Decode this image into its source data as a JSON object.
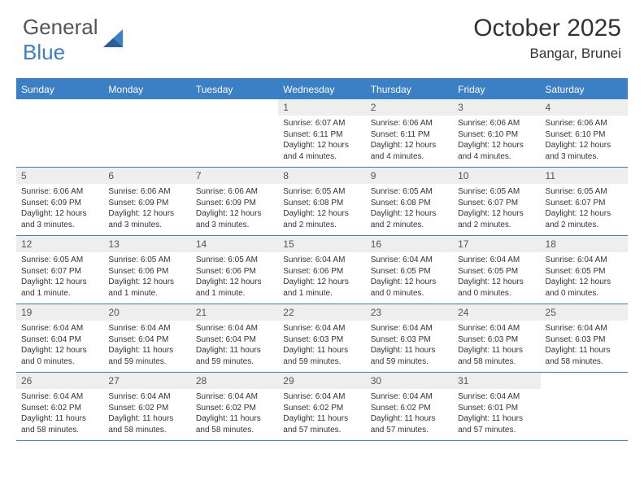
{
  "brand": {
    "text1": "General",
    "text2": "Blue"
  },
  "title": "October 2025",
  "subtitle": "Bangar, Brunei",
  "colors": {
    "brand_blue": "#3b7fc4",
    "header_bg": "#3b7fc4",
    "header_fg": "#ffffff",
    "daynum_bg": "#eeeeee",
    "body_fg": "#333333"
  },
  "fontsize": {
    "title": 30,
    "subtitle": 17,
    "dow": 12,
    "daynum": 12,
    "body": 10
  },
  "days_of_week": [
    "Sunday",
    "Monday",
    "Tuesday",
    "Wednesday",
    "Thursday",
    "Friday",
    "Saturday"
  ],
  "weeks": [
    [
      {
        "n": "",
        "sr": "",
        "ss": "",
        "dl": ""
      },
      {
        "n": "",
        "sr": "",
        "ss": "",
        "dl": ""
      },
      {
        "n": "",
        "sr": "",
        "ss": "",
        "dl": ""
      },
      {
        "n": "1",
        "sr": "6:07 AM",
        "ss": "6:11 PM",
        "dl": "12 hours and 4 minutes."
      },
      {
        "n": "2",
        "sr": "6:06 AM",
        "ss": "6:11 PM",
        "dl": "12 hours and 4 minutes."
      },
      {
        "n": "3",
        "sr": "6:06 AM",
        "ss": "6:10 PM",
        "dl": "12 hours and 4 minutes."
      },
      {
        "n": "4",
        "sr": "6:06 AM",
        "ss": "6:10 PM",
        "dl": "12 hours and 3 minutes."
      }
    ],
    [
      {
        "n": "5",
        "sr": "6:06 AM",
        "ss": "6:09 PM",
        "dl": "12 hours and 3 minutes."
      },
      {
        "n": "6",
        "sr": "6:06 AM",
        "ss": "6:09 PM",
        "dl": "12 hours and 3 minutes."
      },
      {
        "n": "7",
        "sr": "6:06 AM",
        "ss": "6:09 PM",
        "dl": "12 hours and 3 minutes."
      },
      {
        "n": "8",
        "sr": "6:05 AM",
        "ss": "6:08 PM",
        "dl": "12 hours and 2 minutes."
      },
      {
        "n": "9",
        "sr": "6:05 AM",
        "ss": "6:08 PM",
        "dl": "12 hours and 2 minutes."
      },
      {
        "n": "10",
        "sr": "6:05 AM",
        "ss": "6:07 PM",
        "dl": "12 hours and 2 minutes."
      },
      {
        "n": "11",
        "sr": "6:05 AM",
        "ss": "6:07 PM",
        "dl": "12 hours and 2 minutes."
      }
    ],
    [
      {
        "n": "12",
        "sr": "6:05 AM",
        "ss": "6:07 PM",
        "dl": "12 hours and 1 minute."
      },
      {
        "n": "13",
        "sr": "6:05 AM",
        "ss": "6:06 PM",
        "dl": "12 hours and 1 minute."
      },
      {
        "n": "14",
        "sr": "6:05 AM",
        "ss": "6:06 PM",
        "dl": "12 hours and 1 minute."
      },
      {
        "n": "15",
        "sr": "6:04 AM",
        "ss": "6:06 PM",
        "dl": "12 hours and 1 minute."
      },
      {
        "n": "16",
        "sr": "6:04 AM",
        "ss": "6:05 PM",
        "dl": "12 hours and 0 minutes."
      },
      {
        "n": "17",
        "sr": "6:04 AM",
        "ss": "6:05 PM",
        "dl": "12 hours and 0 minutes."
      },
      {
        "n": "18",
        "sr": "6:04 AM",
        "ss": "6:05 PM",
        "dl": "12 hours and 0 minutes."
      }
    ],
    [
      {
        "n": "19",
        "sr": "6:04 AM",
        "ss": "6:04 PM",
        "dl": "12 hours and 0 minutes."
      },
      {
        "n": "20",
        "sr": "6:04 AM",
        "ss": "6:04 PM",
        "dl": "11 hours and 59 minutes."
      },
      {
        "n": "21",
        "sr": "6:04 AM",
        "ss": "6:04 PM",
        "dl": "11 hours and 59 minutes."
      },
      {
        "n": "22",
        "sr": "6:04 AM",
        "ss": "6:03 PM",
        "dl": "11 hours and 59 minutes."
      },
      {
        "n": "23",
        "sr": "6:04 AM",
        "ss": "6:03 PM",
        "dl": "11 hours and 59 minutes."
      },
      {
        "n": "24",
        "sr": "6:04 AM",
        "ss": "6:03 PM",
        "dl": "11 hours and 58 minutes."
      },
      {
        "n": "25",
        "sr": "6:04 AM",
        "ss": "6:03 PM",
        "dl": "11 hours and 58 minutes."
      }
    ],
    [
      {
        "n": "26",
        "sr": "6:04 AM",
        "ss": "6:02 PM",
        "dl": "11 hours and 58 minutes."
      },
      {
        "n": "27",
        "sr": "6:04 AM",
        "ss": "6:02 PM",
        "dl": "11 hours and 58 minutes."
      },
      {
        "n": "28",
        "sr": "6:04 AM",
        "ss": "6:02 PM",
        "dl": "11 hours and 58 minutes."
      },
      {
        "n": "29",
        "sr": "6:04 AM",
        "ss": "6:02 PM",
        "dl": "11 hours and 57 minutes."
      },
      {
        "n": "30",
        "sr": "6:04 AM",
        "ss": "6:02 PM",
        "dl": "11 hours and 57 minutes."
      },
      {
        "n": "31",
        "sr": "6:04 AM",
        "ss": "6:01 PM",
        "dl": "11 hours and 57 minutes."
      },
      {
        "n": "",
        "sr": "",
        "ss": "",
        "dl": ""
      }
    ]
  ],
  "labels": {
    "sunrise": "Sunrise:",
    "sunset": "Sunset:",
    "daylight": "Daylight:"
  }
}
